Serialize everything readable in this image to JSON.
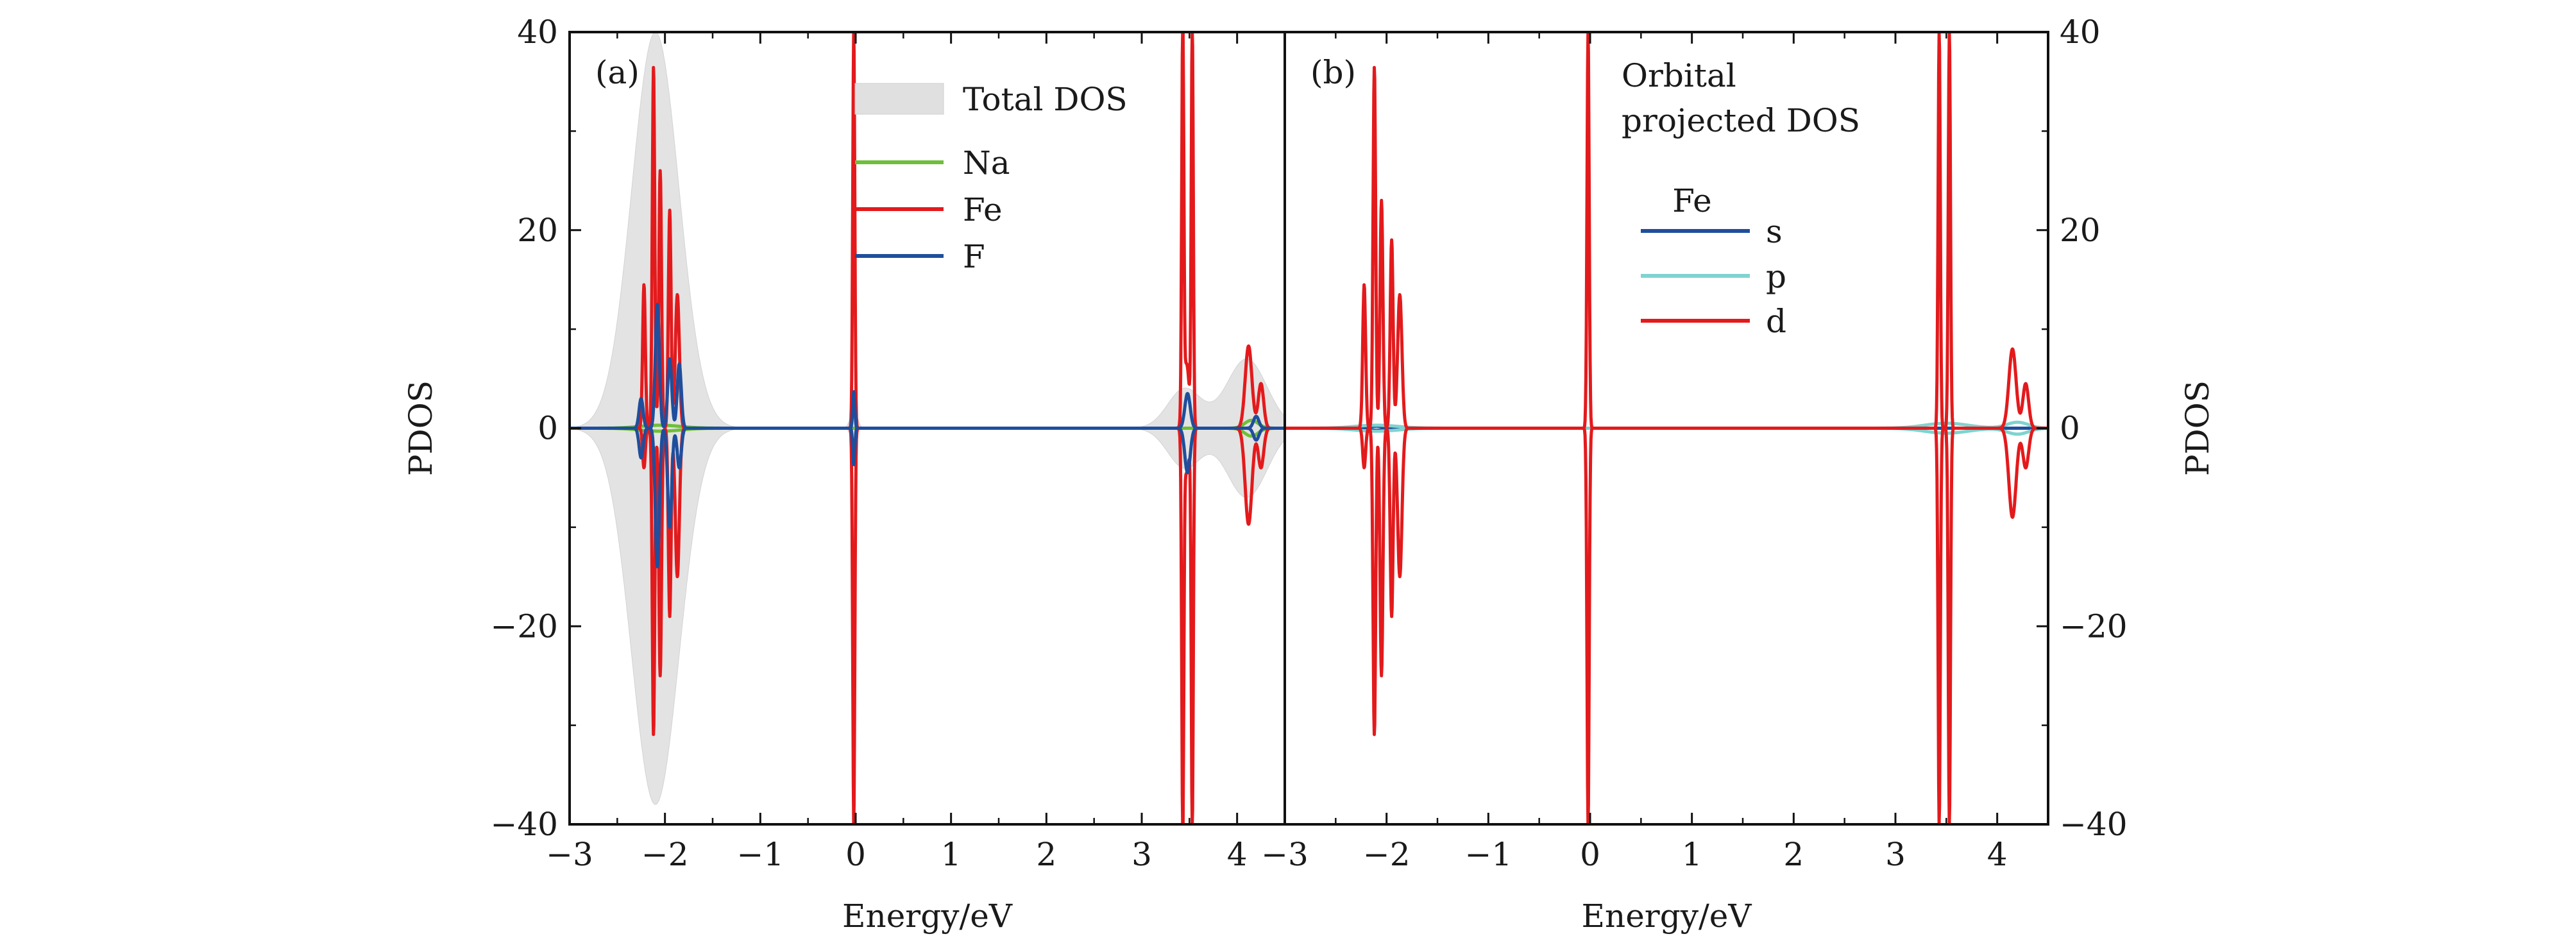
{
  "chart_data": [
    {
      "panel": "(a)",
      "type": "line",
      "xlabel": "Energy/eV",
      "ylabel": "PDOS",
      "xlim": [
        -3.0,
        4.5
      ],
      "ylim": [
        -40,
        40
      ],
      "x_ticks": [
        "−3",
        "−2",
        "−1",
        "0",
        "1",
        "2",
        "3",
        "4"
      ],
      "y_ticks": [
        "−40",
        "−20",
        "0",
        "20",
        "40"
      ],
      "legend_position": "top-center",
      "legend": [
        {
          "label": "Total DOS",
          "kind": "fill",
          "color": "#e0e0e0"
        },
        {
          "label": "Na",
          "kind": "line",
          "color": "#6fbf3a"
        },
        {
          "label": "Fe",
          "kind": "line",
          "color": "#e31a1c"
        },
        {
          "label": "F",
          "kind": "line",
          "color": "#1f4e9c"
        }
      ],
      "series": [
        {
          "name": "Total DOS",
          "color": "#e0e0e0",
          "peaks": [
            {
              "center": -2.1,
              "up": 40,
              "down": -38,
              "width": 0.35
            },
            {
              "center": -0.02,
              "up": 2,
              "down": -1,
              "width": 0.05
            },
            {
              "center": 3.45,
              "up": 4,
              "down": -4,
              "width": 0.25
            },
            {
              "center": 4.1,
              "up": 7,
              "down": -7,
              "width": 0.3
            }
          ]
        },
        {
          "name": "Na",
          "color": "#6fbf3a",
          "peaks": [
            {
              "center": -2.05,
              "up": 0.3,
              "down": -0.3,
              "width": 0.3
            },
            {
              "center": 4.15,
              "up": 0.8,
              "down": -0.8,
              "width": 0.1
            }
          ]
        },
        {
          "name": "Fe",
          "color": "#e31a1c",
          "peaks": [
            {
              "center": -2.22,
              "up": 14.5,
              "down": -4,
              "width": 0.02
            },
            {
              "center": -2.12,
              "up": 36.5,
              "down": -31,
              "width": 0.018
            },
            {
              "center": -2.05,
              "up": 26,
              "down": -25,
              "width": 0.02
            },
            {
              "center": -1.95,
              "up": 22,
              "down": -19,
              "width": 0.02
            },
            {
              "center": -1.87,
              "up": 13.5,
              "down": -15,
              "width": 0.03
            },
            {
              "center": -0.02,
              "up": 40,
              "down": -40,
              "width": 0.015
            },
            {
              "center": 3.43,
              "up": 40,
              "down": -40,
              "width": 0.015
            },
            {
              "center": 3.53,
              "up": 40,
              "down": -40,
              "width": 0.015
            },
            {
              "center": 3.47,
              "up": 6.5,
              "down": -4.5,
              "width": 0.04
            },
            {
              "center": 4.12,
              "up": 8.3,
              "down": -9.7,
              "width": 0.05
            },
            {
              "center": 4.25,
              "up": 4.5,
              "down": -4,
              "width": 0.04
            }
          ]
        },
        {
          "name": "F",
          "color": "#1f4e9c",
          "peaks": [
            {
              "center": -2.25,
              "up": 3,
              "down": -3,
              "width": 0.03
            },
            {
              "center": -2.08,
              "up": 12.5,
              "down": -14,
              "width": 0.03
            },
            {
              "center": -1.95,
              "up": 7,
              "down": -10,
              "width": 0.03
            },
            {
              "center": -1.85,
              "up": 6.5,
              "down": -4,
              "width": 0.03
            },
            {
              "center": -0.02,
              "up": 3.7,
              "down": -3.7,
              "width": 0.015
            },
            {
              "center": 3.48,
              "up": 3.5,
              "down": -4.5,
              "width": 0.04
            },
            {
              "center": 4.2,
              "up": 1.2,
              "down": -1.2,
              "width": 0.04
            }
          ]
        }
      ]
    },
    {
      "panel": "(b)",
      "type": "line",
      "title": "Orbital projected DOS",
      "xlabel": "Energy/eV",
      "ylabel": "PDOS",
      "xlim": [
        -3.0,
        4.5
      ],
      "ylim": [
        -40,
        40
      ],
      "x_ticks": [
        "−3",
        "−2",
        "−1",
        "0",
        "1",
        "2",
        "3",
        "4"
      ],
      "y_ticks": [
        "−40",
        "−20",
        "0",
        "20",
        "40"
      ],
      "legend_position": "top-center",
      "legend_title": "Fe",
      "legend": [
        {
          "label": "s",
          "kind": "line",
          "color": "#1f4e9c"
        },
        {
          "label": "p",
          "kind": "line",
          "color": "#7fd3d0"
        },
        {
          "label": "d",
          "kind": "line",
          "color": "#e31a1c"
        }
      ],
      "series": [
        {
          "name": "s",
          "color": "#1f4e9c",
          "peaks": [
            {
              "center": -2.1,
              "up": 0.2,
              "down": -0.2,
              "width": 0.1
            }
          ]
        },
        {
          "name": "p",
          "color": "#7fd3d0",
          "peaks": [
            {
              "center": -2.1,
              "up": 0.3,
              "down": -0.3,
              "width": 0.3
            },
            {
              "center": 3.5,
              "up": 0.5,
              "down": -0.5,
              "width": 0.3
            },
            {
              "center": 4.2,
              "up": 0.6,
              "down": -0.6,
              "width": 0.15
            }
          ]
        },
        {
          "name": "d",
          "color": "#e31a1c",
          "peaks": [
            {
              "center": -2.22,
              "up": 14.5,
              "down": -4,
              "width": 0.02
            },
            {
              "center": -2.12,
              "up": 36.5,
              "down": -31,
              "width": 0.018
            },
            {
              "center": -2.05,
              "up": 23,
              "down": -25,
              "width": 0.02
            },
            {
              "center": -1.95,
              "up": 19,
              "down": -19,
              "width": 0.02
            },
            {
              "center": -1.87,
              "up": 13.5,
              "down": -15,
              "width": 0.03
            },
            {
              "center": -0.02,
              "up": 40,
              "down": -40,
              "width": 0.015
            },
            {
              "center": 3.43,
              "up": 40,
              "down": -40,
              "width": 0.015
            },
            {
              "center": 3.53,
              "up": 40,
              "down": -40,
              "width": 0.015
            },
            {
              "center": 4.15,
              "up": 8,
              "down": -9,
              "width": 0.05
            },
            {
              "center": 4.28,
              "up": 4.5,
              "down": -4,
              "width": 0.04
            }
          ]
        }
      ]
    }
  ]
}
